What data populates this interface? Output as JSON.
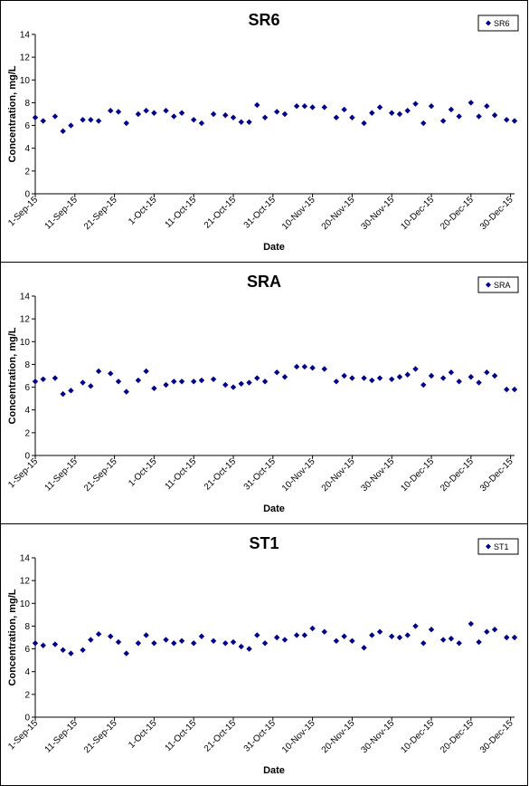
{
  "chart_data": [
    {
      "type": "scatter",
      "title": "SR6",
      "xlabel": "Date",
      "ylabel": "Concentration, mg/L",
      "ylim": [
        0,
        14
      ],
      "yticks": [
        "0",
        "2",
        "4",
        "6",
        "8",
        "10",
        "12",
        "14"
      ],
      "xlim": [
        "2015-09-01",
        "2015-12-31"
      ],
      "xticks": [
        "1-Sep-15",
        "11-Sep-15",
        "21-Sep-15",
        "1-Oct-15",
        "11-Oct-15",
        "21-Oct-15",
        "31-Oct-15",
        "10-Nov-15",
        "20-Nov-15",
        "30-Nov-15",
        "10-Dec-15",
        "20-Dec-15",
        "30-Dec-15"
      ],
      "grid": false,
      "legend": "top-right",
      "marker_color": "#00008B",
      "series": [
        {
          "name": "SR6",
          "x": [
            "2015-09-01",
            "2015-09-03",
            "2015-09-06",
            "2015-09-08",
            "2015-09-10",
            "2015-09-13",
            "2015-09-15",
            "2015-09-17",
            "2015-09-20",
            "2015-09-22",
            "2015-09-24",
            "2015-09-27",
            "2015-09-29",
            "2015-10-01",
            "2015-10-04",
            "2015-10-06",
            "2015-10-08",
            "2015-10-11",
            "2015-10-13",
            "2015-10-16",
            "2015-10-19",
            "2015-10-21",
            "2015-10-23",
            "2015-10-25",
            "2015-10-27",
            "2015-10-29",
            "2015-11-01",
            "2015-11-03",
            "2015-11-06",
            "2015-11-08",
            "2015-11-10",
            "2015-11-13",
            "2015-11-16",
            "2015-11-18",
            "2015-11-20",
            "2015-11-23",
            "2015-11-25",
            "2015-11-27",
            "2015-11-30",
            "2015-12-02",
            "2015-12-04",
            "2015-12-06",
            "2015-12-08",
            "2015-12-10",
            "2015-12-13",
            "2015-12-15",
            "2015-12-17",
            "2015-12-20",
            "2015-12-22",
            "2015-12-24",
            "2015-12-26",
            "2015-12-29",
            "2015-12-31"
          ],
          "y": [
            6.7,
            6.4,
            6.8,
            5.5,
            6.0,
            6.5,
            6.5,
            6.4,
            7.3,
            7.2,
            6.2,
            7.0,
            7.3,
            7.1,
            7.3,
            6.8,
            7.1,
            6.5,
            6.2,
            7.0,
            6.9,
            6.7,
            6.3,
            6.3,
            7.8,
            6.7,
            7.2,
            7.0,
            7.7,
            7.7,
            7.6,
            7.6,
            6.7,
            7.4,
            6.7,
            6.2,
            7.1,
            7.6,
            7.1,
            7.0,
            7.3,
            7.9,
            6.2,
            7.7,
            6.4,
            7.4,
            6.8,
            8.0,
            6.8,
            7.7,
            6.9,
            6.5,
            6.4
          ]
        }
      ]
    },
    {
      "type": "scatter",
      "title": "SRA",
      "xlabel": "Date",
      "ylabel": "Concentration, mg/L",
      "ylim": [
        0,
        14
      ],
      "yticks": [
        "0",
        "2",
        "4",
        "6",
        "8",
        "10",
        "12",
        "14"
      ],
      "xlim": [
        "2015-09-01",
        "2015-12-31"
      ],
      "xticks": [
        "1-Sep-15",
        "11-Sep-15",
        "21-Sep-15",
        "1-Oct-15",
        "11-Oct-15",
        "21-Oct-15",
        "31-Oct-15",
        "10-Nov-15",
        "20-Nov-15",
        "30-Nov-15",
        "10-Dec-15",
        "20-Dec-15",
        "30-Dec-15"
      ],
      "grid": false,
      "legend": "top-right",
      "marker_color": "#00008B",
      "series": [
        {
          "name": "SRA",
          "x": [
            "2015-09-01",
            "2015-09-03",
            "2015-09-06",
            "2015-09-08",
            "2015-09-10",
            "2015-09-13",
            "2015-09-15",
            "2015-09-17",
            "2015-09-20",
            "2015-09-22",
            "2015-09-24",
            "2015-09-27",
            "2015-09-29",
            "2015-10-01",
            "2015-10-04",
            "2015-10-06",
            "2015-10-08",
            "2015-10-11",
            "2015-10-13",
            "2015-10-16",
            "2015-10-19",
            "2015-10-21",
            "2015-10-23",
            "2015-10-25",
            "2015-10-27",
            "2015-10-29",
            "2015-11-01",
            "2015-11-03",
            "2015-11-06",
            "2015-11-08",
            "2015-11-10",
            "2015-11-13",
            "2015-11-16",
            "2015-11-18",
            "2015-11-20",
            "2015-11-23",
            "2015-11-25",
            "2015-11-27",
            "2015-11-30",
            "2015-12-02",
            "2015-12-04",
            "2015-12-06",
            "2015-12-08",
            "2015-12-10",
            "2015-12-13",
            "2015-12-15",
            "2015-12-17",
            "2015-12-20",
            "2015-12-22",
            "2015-12-24",
            "2015-12-26",
            "2015-12-29",
            "2015-12-31"
          ],
          "y": [
            6.5,
            6.7,
            6.8,
            5.4,
            5.7,
            6.4,
            6.1,
            7.4,
            7.2,
            6.5,
            5.6,
            6.6,
            7.4,
            5.9,
            6.2,
            6.5,
            6.5,
            6.5,
            6.6,
            6.7,
            6.2,
            6.0,
            6.3,
            6.4,
            6.8,
            6.5,
            7.3,
            6.9,
            7.8,
            7.8,
            7.7,
            7.6,
            6.5,
            7.0,
            6.8,
            6.8,
            6.6,
            6.8,
            6.7,
            6.9,
            7.1,
            7.6,
            6.2,
            7.0,
            6.8,
            7.3,
            6.5,
            6.9,
            6.4,
            7.3,
            7.0,
            5.8,
            5.8
          ]
        }
      ]
    },
    {
      "type": "scatter",
      "title": "ST1",
      "xlabel": "Date",
      "ylabel": "Concentration, mg/L",
      "ylim": [
        0,
        14
      ],
      "yticks": [
        "0",
        "2",
        "4",
        "6",
        "8",
        "10",
        "12",
        "14"
      ],
      "xlim": [
        "2015-09-01",
        "2015-12-31"
      ],
      "xticks": [
        "1-Sep-15",
        "11-Sep-15",
        "21-Sep-15",
        "1-Oct-15",
        "11-Oct-15",
        "21-Oct-15",
        "31-Oct-15",
        "10-Nov-15",
        "20-Nov-15",
        "30-Nov-15",
        "10-Dec-15",
        "20-Dec-15",
        "30-Dec-15"
      ],
      "grid": false,
      "legend": "top-right",
      "marker_color": "#00008B",
      "series": [
        {
          "name": "ST1",
          "x": [
            "2015-09-01",
            "2015-09-03",
            "2015-09-06",
            "2015-09-08",
            "2015-09-10",
            "2015-09-13",
            "2015-09-15",
            "2015-09-17",
            "2015-09-20",
            "2015-09-22",
            "2015-09-24",
            "2015-09-27",
            "2015-09-29",
            "2015-10-01",
            "2015-10-04",
            "2015-10-06",
            "2015-10-08",
            "2015-10-11",
            "2015-10-13",
            "2015-10-16",
            "2015-10-19",
            "2015-10-21",
            "2015-10-23",
            "2015-10-25",
            "2015-10-27",
            "2015-10-29",
            "2015-11-01",
            "2015-11-03",
            "2015-11-06",
            "2015-11-08",
            "2015-11-10",
            "2015-11-13",
            "2015-11-16",
            "2015-11-18",
            "2015-11-20",
            "2015-11-23",
            "2015-11-25",
            "2015-11-27",
            "2015-11-30",
            "2015-12-02",
            "2015-12-04",
            "2015-12-06",
            "2015-12-08",
            "2015-12-10",
            "2015-12-13",
            "2015-12-15",
            "2015-12-17",
            "2015-12-20",
            "2015-12-22",
            "2015-12-24",
            "2015-12-26",
            "2015-12-29",
            "2015-12-31"
          ],
          "y": [
            6.5,
            6.3,
            6.4,
            5.9,
            5.6,
            5.9,
            6.8,
            7.3,
            7.1,
            6.6,
            5.6,
            6.5,
            7.2,
            6.5,
            6.8,
            6.5,
            6.7,
            6.5,
            7.1,
            6.7,
            6.5,
            6.6,
            6.2,
            6.0,
            7.2,
            6.5,
            7.0,
            6.8,
            7.2,
            7.2,
            7.8,
            7.5,
            6.7,
            7.1,
            6.7,
            6.1,
            7.2,
            7.5,
            7.1,
            7.0,
            7.2,
            8.0,
            6.5,
            7.7,
            6.8,
            6.9,
            6.5,
            8.2,
            6.6,
            7.5,
            7.7,
            7.0,
            7.0
          ]
        }
      ]
    }
  ]
}
